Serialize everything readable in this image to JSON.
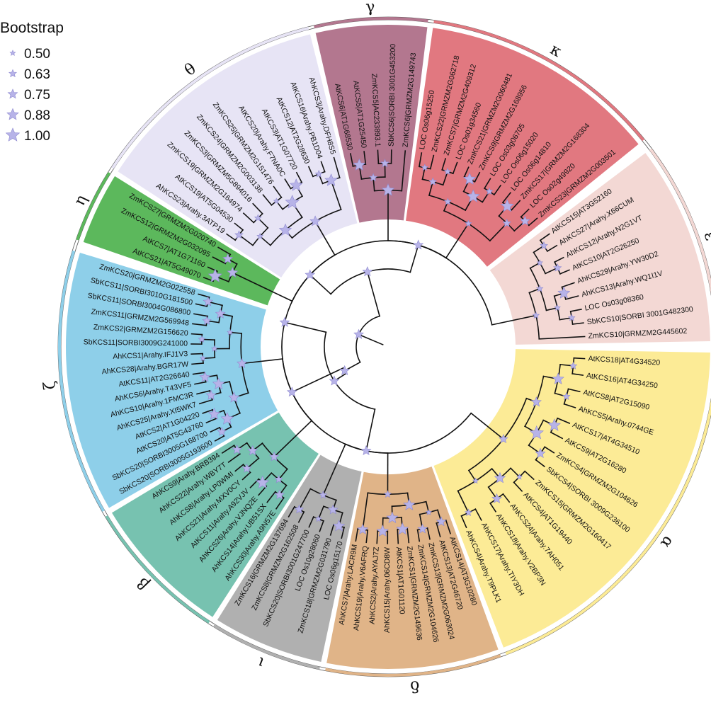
{
  "legend": {
    "title": "Bootstrap",
    "items": [
      {
        "label": "0.50",
        "value": 0.5
      },
      {
        "label": "0.63",
        "value": 0.63
      },
      {
        "label": "0.75",
        "value": 0.75
      },
      {
        "label": "0.88",
        "value": 0.88
      },
      {
        "label": "1.00",
        "value": 1.0
      }
    ]
  },
  "colors": {
    "alpha": "#fceb96",
    "beta": "#77c2b0",
    "gamma": "#b3778f",
    "delta": "#e0b488",
    "epsilon": "#f3d8d4",
    "zeta": "#8ecfe9",
    "eta": "#5cb85c",
    "theta": "#e7e4f5",
    "iota": "#b0b0b0",
    "kappa": "#e17880",
    "star": "#b7b3e8"
  },
  "clades": [
    {
      "id": "alpha",
      "label": "α",
      "leaves": [
        "AtKCS18|AT4G34520",
        "AtKCS16|AT4G34250",
        "AtKCS8|AT2G15090",
        "AhKCS5|Arahy.0744GE",
        "AtKCS17|AT4G34510",
        "AtKCS9|AT2G16280",
        "ZmKCS4|GRMZM2G104626",
        "SbKCS4|SORBI 3009G236100",
        "ZmKCS15|GRMZM2G160417",
        "AtKCS4|AT1G19440",
        "AhKCS24|Arahy.7AH051",
        "AhKCS18|Arahy.V2BP3N",
        "AhKCS17|Arahy.TIY3DH",
        "AhKCS4|Arahy.T9PLK1"
      ]
    },
    {
      "id": "delta",
      "label": "δ",
      "leaves": [
        "AtKCS14|AT3G10280",
        "AtKCS13|AT2G46720",
        "ZmKCS13|GRMZM2G063024",
        "ZmKCS14|GRMZM2G104626",
        "ZmKCS1|GRMZM2G149636",
        "AtKCS1|AT1G01120",
        "AhKCS15|Arahy.06CD8W",
        "AhKCS2|Arahy.AYAJ7Z",
        "AhKCS19|Arahy.V6AFRQ",
        "AhKCS7|Arahy.LACR9M"
      ]
    },
    {
      "id": "iota",
      "label": "ι",
      "leaves": [
        "LOC Os06g15170",
        "ZmKCS18|GRMZM2G031790",
        "LOC Os10g28060",
        "SbKCS20|SORBI3001G247700",
        "ZmKCS8|GRMZM2G162508",
        "ZmKCS16|GRMZM2G137694"
      ]
    },
    {
      "id": "beta",
      "label": "β",
      "leaves": [
        "AhKCS30|Arahy.A9N57E",
        "AhKCS14|Arahy.UB51SX",
        "AhKCS26|Arahy.VJNQ2E",
        "AtKCS11|Arahy.A92VJV",
        "AhKCS21|Arahy.MXV0CY",
        "AhKCS8|Arahy.LP0WMI",
        "AhKCS22|Arahy.WBY7T",
        "AhKCS9|Arahy.BRB394"
      ]
    },
    {
      "id": "zeta",
      "label": "ζ",
      "leaves": [
        "SbKCS20|SORBI3005G193600",
        "SbKCS20|SORBI3005G168700",
        "AtKCS20|AT5G43760",
        "AtKCS2|AT1G04220",
        "AhKCS25|Arahy.XI5WK7",
        "AhKCS10|Arahy.1FMC3R",
        "AhKCS6|Arahy.T43VF5",
        "AtKCS11|AT2G26640",
        "AhKCS28|Arahy.BGR17W",
        "AhKCS1|Arahy.IFJ1V3",
        "SbKCS11|SORBI3009G241000",
        "ZmKCS2|GRMZM2G156620",
        "ZmKCS11|GRMZM2G569948",
        "SbKCS11|SORBI3004G086800",
        "SbKCS11|SORBI3010G181500",
        "ZmKCS20|GRMZM2G022558"
      ]
    },
    {
      "id": "eta",
      "label": "η",
      "leaves": [
        "AtKCS21|AT5G49070",
        "AtKCS7|AT1G71160",
        "ZmKCS12|GRMZM2G032095",
        "ZmKCS27|GRMZM2G020740"
      ]
    },
    {
      "id": "theta",
      "label": "θ",
      "leaves": [
        "AhKCS23|Arahy.3ATP19",
        "AtKCS19|AT5G04530",
        "ZmKCS19|GRMZM2G164974",
        "ZmKCS3|GRMZM5G894016",
        "ZmKCS24|GRMZM2G003138",
        "ZmKCS25|GRMZM2G151476",
        "AtKCS20|Arahy.F7NA0C",
        "AtKCS3|AT1G07720",
        "AtKCS12|AT2G28630",
        "AtKCS16|Arahy.PB1D04",
        "AhKCS3|Arahy.DFH8S5"
      ]
    },
    {
      "id": "gamma",
      "label": "γ",
      "leaves": [
        "AtKCS6|AT1G68530",
        "AtKCS5|AT1G25450",
        "ZmKCS5|AC233893.1",
        "SbKCS6|SORBI 3001G453200",
        "ZmKCS6|GRMZM2G149743"
      ]
    },
    {
      "id": "kappa",
      "label": "κ",
      "leaves": [
        "LOC Os06g15250",
        "ZmKCS22|GRMZM2G062718",
        "ZmKCS7|GRMZM2G409312",
        "LOC Os01g34560",
        "ZmKCS21|GRMZM2G060481",
        "ZmKCS9|GRMZM2G168956",
        "LOC Os03g06705",
        "LOC Os06g15020",
        "LOC Os06g14810",
        "ZmKCS17|GRMZM2G168304",
        "LOC Os02g49920",
        "ZmKCS23|GRMZM2G003501"
      ]
    },
    {
      "id": "epsilon",
      "label": "ε",
      "leaves": [
        "AtKCS15|AT3G52160",
        "AhKCS27|Arahy.X66CUM",
        "AhKCS12|Arahy.N2G1VT",
        "AtKCS10|AT2G26250",
        "AhKCS29|Arahy.YW30D2",
        "AhKCS13|Arahy.WQ1I1V",
        "LOC Os03g08360",
        "SbKCS10|SORBI 3001G482300",
        "ZmKCS10|GRMZM2G445602"
      ]
    }
  ]
}
